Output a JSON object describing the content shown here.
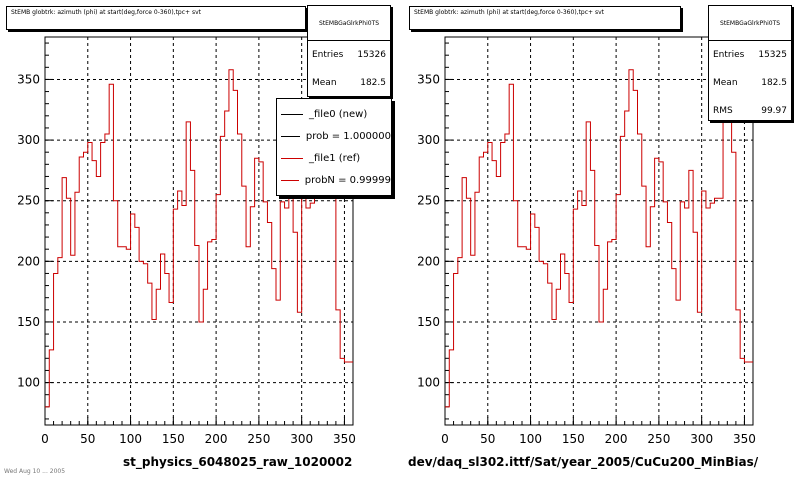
{
  "charts": [
    {
      "title": "StEMB globtrk: azimuth (phi) at start(deg,force 0-360),tpc+ svt",
      "stats": {
        "name": "StEMBGaGlrkPhi0TS",
        "rows": [
          [
            "Entries",
            "15326"
          ],
          [
            "Mean",
            "182.5"
          ]
        ]
      },
      "legend": [
        {
          "label": "_file0 (new)",
          "color": "#000000"
        },
        {
          "label": "prob = 1.000000",
          "color": "#000000"
        },
        {
          "label": "_file1 (ref)",
          "color": "#cc0000"
        },
        {
          "label": "probN = 0.99999",
          "color": "#cc0000"
        }
      ],
      "footer": "st_physics_6048025_raw_1020002"
    },
    {
      "title": "StEMB globtrk: azimuth (phi) at start(deg,force 0-360),tpc+ svt",
      "stats": {
        "name": "StEMBGaGlrkPhi0TS",
        "rows": [
          [
            "Entries",
            "15325"
          ],
          [
            "Mean",
            "182.5"
          ],
          [
            "RMS",
            "99.97"
          ]
        ]
      },
      "legend": [],
      "footer": "dev/daq_sl302.ittf/Sat/year_2005/CuCu200_MinBias/"
    }
  ],
  "stamp": "Wed Aug 10 ... 2005",
  "chart_data": {
    "type": "line",
    "step": true,
    "xlim": [
      0,
      360
    ],
    "ylim": [
      65,
      385
    ],
    "xticks": [
      0,
      50,
      100,
      150,
      200,
      250,
      300,
      350
    ],
    "yticks": [
      100,
      150,
      200,
      250,
      300,
      350
    ],
    "grid": true,
    "bin_width": 5,
    "x": [
      0,
      5,
      10,
      15,
      20,
      25,
      30,
      35,
      40,
      45,
      50,
      55,
      60,
      65,
      70,
      75,
      80,
      85,
      90,
      95,
      100,
      105,
      110,
      115,
      120,
      125,
      130,
      135,
      140,
      145,
      150,
      155,
      160,
      165,
      170,
      175,
      180,
      185,
      190,
      195,
      200,
      205,
      210,
      215,
      220,
      225,
      230,
      235,
      240,
      245,
      250,
      255,
      260,
      265,
      270,
      275,
      280,
      285,
      290,
      295,
      300,
      305,
      310,
      315,
      320,
      325,
      330,
      335,
      340,
      345,
      350,
      355
    ],
    "series": [
      {
        "color": "#cc0000",
        "values": [
          80,
          127,
          190,
          203,
          269,
          252,
          205,
          257,
          286,
          290,
          298,
          283,
          270,
          298,
          305,
          346,
          250,
          212,
          212,
          210,
          239,
          228,
          200,
          198,
          182,
          152,
          177,
          206,
          190,
          166,
          243,
          258,
          246,
          315,
          275,
          213,
          150,
          177,
          216,
          218,
          255,
          303,
          324,
          358,
          341,
          305,
          262,
          212,
          245,
          285,
          282,
          249,
          232,
          194,
          168,
          249,
          244,
          275,
          224,
          158,
          258,
          244,
          248,
          252,
          252,
          315,
          320,
          290,
          160,
          120,
          117,
          117
        ]
      }
    ]
  }
}
